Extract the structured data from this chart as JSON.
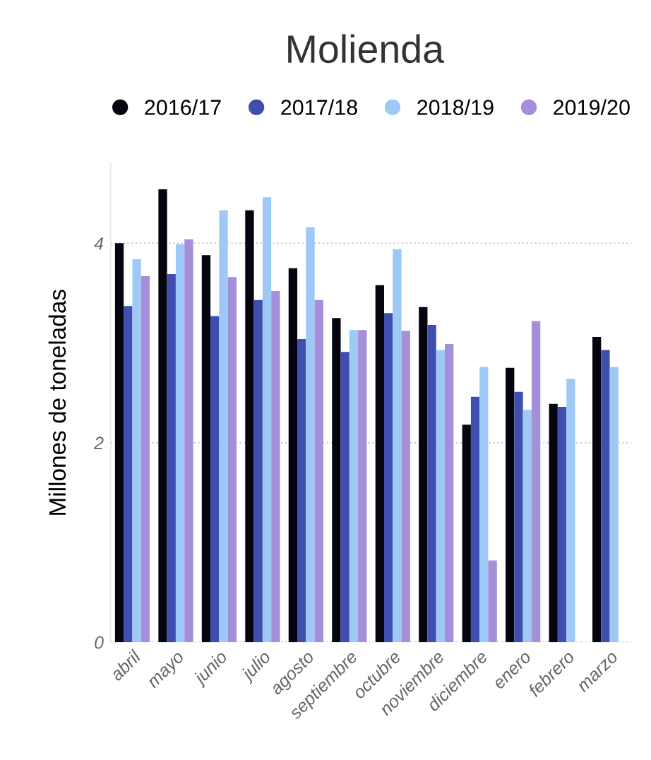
{
  "chart_data": {
    "type": "bar",
    "title": "Molienda",
    "ylabel": "Millones de toneladas",
    "categories": [
      "abril",
      "mayo",
      "junio",
      "julio",
      "agosto",
      "septiembre",
      "octubre",
      "noviembre",
      "diciembre",
      "enero",
      "febrero",
      "marzo"
    ],
    "series": [
      {
        "name": "2016/17",
        "color": "#05050f",
        "values": [
          4.0,
          4.54,
          3.88,
          4.33,
          3.75,
          3.25,
          3.58,
          3.36,
          2.18,
          2.75,
          2.39,
          3.06
        ]
      },
      {
        "name": "2017/18",
        "color": "#3f4fb0",
        "values": [
          3.37,
          3.69,
          3.27,
          3.43,
          3.04,
          2.91,
          3.3,
          3.18,
          2.46,
          2.51,
          2.36,
          2.93
        ]
      },
      {
        "name": "2018/19",
        "color": "#9ec9f7",
        "values": [
          3.84,
          3.99,
          4.33,
          4.46,
          4.16,
          3.13,
          3.94,
          2.93,
          2.76,
          2.33,
          2.64,
          2.76
        ]
      },
      {
        "name": "2019/20",
        "color": "#a48fd8",
        "values": [
          3.67,
          4.04,
          3.66,
          3.52,
          3.43,
          3.13,
          3.12,
          2.99,
          0.82,
          3.22,
          null,
          null
        ]
      }
    ],
    "ylim": [
      0,
      4.8
    ],
    "yticks": [
      0,
      2,
      4
    ],
    "grid": "y",
    "legend": "top"
  }
}
